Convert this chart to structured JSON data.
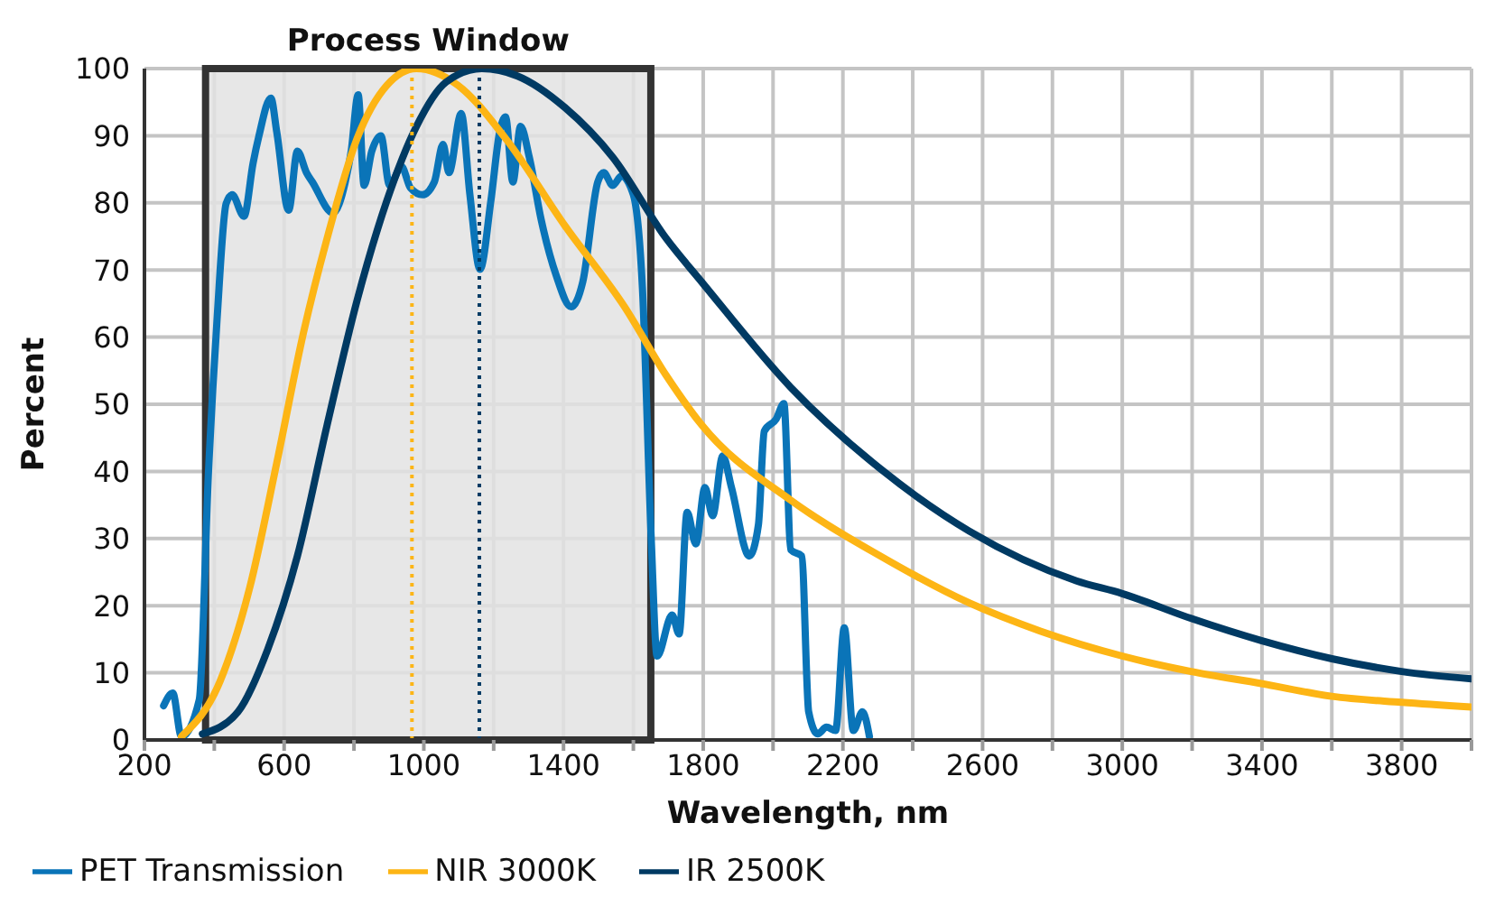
{
  "chart_data": {
    "type": "line",
    "xlabel": "Wavelength, nm",
    "ylabel": "Percent",
    "xlim": [
      200,
      4000
    ],
    "xticks": [
      200,
      {
        "value": 400,
        "label": null
      },
      600,
      {
        "value": 800,
        "label": null
      },
      1000,
      {
        "value": 1200,
        "label": null
      },
      1400,
      {
        "value": 1600,
        "label": null
      },
      1800,
      {
        "value": 2000,
        "label": null
      },
      2200,
      {
        "value": 2400,
        "label": null
      },
      2600,
      {
        "value": 2800,
        "label": null
      },
      3000,
      {
        "value": 3200,
        "label": null
      },
      3400,
      {
        "value": 3600,
        "label": null
      },
      3800,
      {
        "value": 4000,
        "label": null
      }
    ],
    "ylim": [
      0,
      100
    ],
    "yticks": [
      0,
      10,
      20,
      30,
      40,
      50,
      60,
      70,
      80,
      90,
      100
    ],
    "grid": true,
    "legend": "bottom left",
    "marker": "none",
    "line_style": "solid",
    "bands": [
      {
        "axis": "x",
        "from": 375,
        "to": 1650,
        "label": "Process Window",
        "color": "#e3e3e3"
      }
    ],
    "ref_lines": [
      {
        "axis": "x",
        "value": 966,
        "color": "#fdb515",
        "line_style": "dotted"
      },
      {
        "axis": "x",
        "value": 1159,
        "color": "#003a63",
        "line_style": "dotted"
      }
    ],
    "series": [
      {
        "name": "PET Transmission",
        "color": "#0a74b8",
        "x": [
          255,
          281,
          306,
          357,
          383,
          408,
          434,
          451,
          485,
          511,
          528,
          562,
          579,
          613,
          638,
          664,
          681,
          740,
          775,
          792,
          812,
          829,
          851,
          877,
          902,
          936,
          962,
          996,
          1030,
          1055,
          1072,
          1107,
          1132,
          1161,
          1192,
          1217,
          1234,
          1255,
          1277,
          1302,
          1336,
          1379,
          1422,
          1455,
          1498,
          1515,
          1541,
          1566,
          1600,
          1626,
          1651,
          1668,
          1711,
          1731,
          1754,
          1779,
          1805,
          1827,
          1856,
          1881,
          1932,
          1958,
          1975,
          2009,
          2031,
          2051,
          2082,
          2102,
          2128,
          2153,
          2179,
          2204,
          2230,
          2256,
          2276
        ],
        "values": [
          5.1,
          7,
          0.5,
          6,
          39.5,
          62.7,
          79.9,
          81.2,
          78,
          85.9,
          90,
          95.6,
          90.5,
          78.9,
          87.7,
          84.5,
          83.1,
          78.5,
          83.1,
          87.7,
          96.1,
          82.6,
          87.7,
          90,
          82.6,
          85.4,
          82.2,
          81.2,
          83.1,
          88.7,
          84.5,
          93.3,
          81.2,
          70.1,
          80.3,
          90.5,
          92.8,
          83.1,
          91.4,
          86.8,
          77.5,
          69.2,
          64.5,
          68.2,
          83.1,
          84.5,
          82.6,
          84,
          81.2,
          67.3,
          30.2,
          12.5,
          18.6,
          15.8,
          33.9,
          29.2,
          37.6,
          33.4,
          42.3,
          37.6,
          27.4,
          32,
          46,
          47.8,
          50.1,
          28.3,
          27.4,
          4.2,
          0.9,
          1.9,
          1.4,
          16.7,
          1.4,
          4.2,
          0.5
        ]
      },
      {
        "name": "NIR 3000K",
        "color": "#fdb515",
        "x": [
          306,
          417,
          502,
          579,
          656,
          723,
          809,
          894,
          979,
          1098,
          1234,
          1404,
          1575,
          1694,
          1796,
          2051,
          2307,
          2562,
          2766,
          3000,
          3197,
          3398,
          3600,
          3800,
          4000
        ],
        "values": [
          0.5,
          8.8,
          22.8,
          41.3,
          60.8,
          74.7,
          89.6,
          97.5,
          100,
          97.5,
          89.6,
          76.6,
          64.5,
          54.3,
          46.9,
          35.7,
          27.4,
          20.4,
          16.2,
          12.5,
          10.2,
          8.4,
          6.5,
          5.6,
          4.9
        ]
      },
      {
        "name": "IR 2500K",
        "color": "#003a63",
        "x": [
          366,
          468,
          553,
          638,
          723,
          809,
          894,
          979,
          1064,
          1166,
          1268,
          1404,
          1541,
          1694,
          1796,
          2051,
          2307,
          2562,
          2869,
          3000,
          3197,
          3398,
          3600,
          3800,
          4000
        ],
        "values": [
          0.9,
          4.2,
          13.5,
          27.4,
          46.9,
          65.5,
          80.3,
          91.4,
          98,
          100,
          98.9,
          94.2,
          86.8,
          74.7,
          68.2,
          52.5,
          40.4,
          31.1,
          23.7,
          21.8,
          18.1,
          14.8,
          12.1,
          10.2,
          9.1
        ]
      }
    ]
  }
}
